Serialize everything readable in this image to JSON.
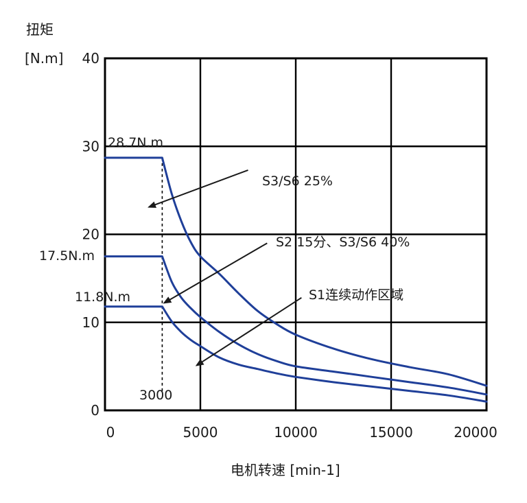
{
  "chart_data": {
    "type": "line",
    "ylabel_line1": "扭矩",
    "ylabel_line2": "[N.m]",
    "xlabel": "电机转速 [min-1]",
    "xlim": [
      0,
      20000
    ],
    "ylim": [
      0,
      40
    ],
    "xticks": [
      0,
      5000,
      10000,
      15000,
      20000
    ],
    "yticks": [
      0,
      10,
      20,
      30,
      40
    ],
    "x_tick_labels": [
      "0",
      "5000",
      "10000",
      "15000",
      "20000"
    ],
    "y_tick_labels": [
      "0",
      "10",
      "20",
      "30",
      "40"
    ],
    "grid": true,
    "line_color": "#1f3f99",
    "series": [
      {
        "x": [
          0,
          3000,
          3500,
          4000,
          4500,
          5000,
          6000,
          7000,
          8000,
          9000,
          10000,
          12000,
          14000,
          16000,
          18000,
          20000
        ],
        "y": [
          28.7,
          28.7,
          24.6,
          21.5,
          19.1,
          17.5,
          15.5,
          13.3,
          11.3,
          9.8,
          8.6,
          7.0,
          5.8,
          4.9,
          4.1,
          2.8
        ]
      },
      {
        "x": [
          0,
          3000,
          3500,
          4000,
          4500,
          5000,
          6000,
          7000,
          8000,
          9000,
          10000,
          12000,
          14000,
          16000,
          18000,
          20000
        ],
        "y": [
          17.5,
          17.5,
          14.6,
          12.8,
          11.6,
          10.6,
          8.9,
          7.5,
          6.4,
          5.6,
          5.0,
          4.4,
          3.8,
          3.2,
          2.6,
          1.8
        ]
      },
      {
        "x": [
          0,
          3000,
          3500,
          4000,
          4500,
          5000,
          6000,
          7000,
          8000,
          9000,
          10000,
          12000,
          14000,
          16000,
          18000,
          20000
        ],
        "y": [
          11.8,
          11.8,
          10.1,
          8.9,
          8.0,
          7.3,
          6.0,
          5.2,
          4.7,
          4.2,
          3.8,
          3.2,
          2.7,
          2.2,
          1.7,
          1.0
        ]
      }
    ],
    "reference_x": 3000,
    "labels": {
      "t1": "28.7N.m",
      "t2": "17.5N.m",
      "t3": "11.8N.m",
      "base_speed": "3000",
      "s3": "S3/S6 25%",
      "s2": "S2 15分、S3/S6 40%",
      "s1": "S1连续动作区域"
    },
    "arrows": [
      {
        "from": [
          7500,
          27.3
        ],
        "to": [
          2300,
          23.1
        ]
      },
      {
        "from": [
          8500,
          19.0
        ],
        "to": [
          3100,
          12.2
        ]
      },
      {
        "from": [
          10300,
          12.8
        ],
        "to": [
          4800,
          5.1
        ]
      }
    ]
  }
}
